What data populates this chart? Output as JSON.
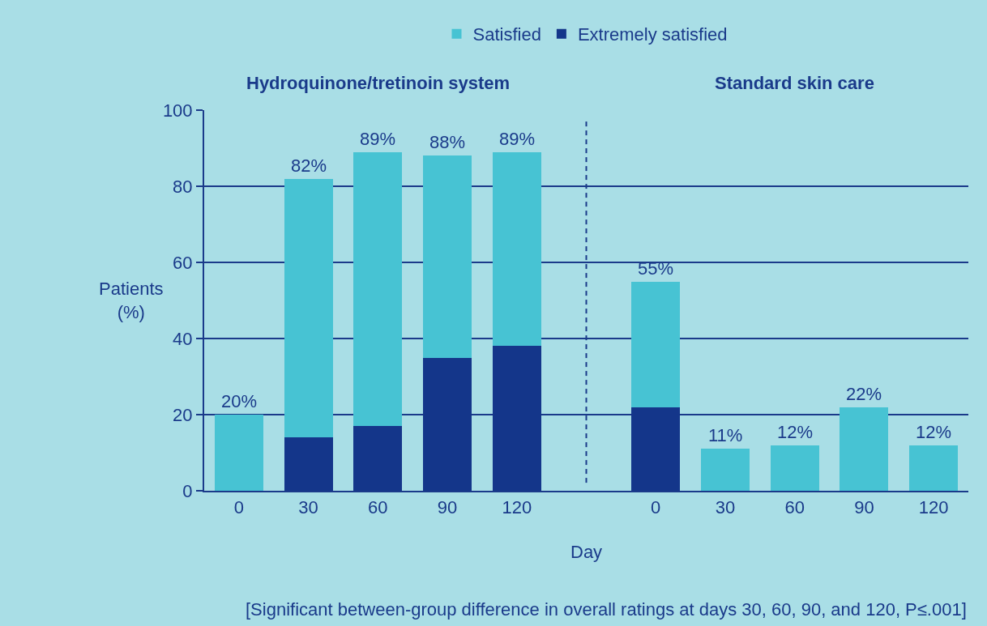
{
  "chart_data": {
    "type": "bar",
    "stacked": true,
    "categories": [
      "0",
      "30",
      "60",
      "90",
      "120",
      null,
      "0",
      "30",
      "60",
      "90",
      "120"
    ],
    "series": [
      {
        "name": "Extremely satisfied",
        "color": "#14368a",
        "values": [
          0,
          14,
          17,
          35,
          38,
          null,
          22,
          0,
          0,
          0,
          0
        ]
      },
      {
        "name": "Satisfied",
        "color": "#47c3d3",
        "values": [
          20,
          68,
          72,
          53,
          51,
          null,
          33,
          11,
          12,
          22,
          12
        ]
      }
    ],
    "totals": [
      "20%",
      "82%",
      "89%",
      "88%",
      "89%",
      null,
      "55%",
      "11%",
      "12%",
      "22%",
      "12%"
    ],
    "ylim": [
      0,
      100
    ],
    "yticks": [
      0,
      20,
      40,
      60,
      80,
      100
    ],
    "grid": "y",
    "legend": "top",
    "xlabel": "Day",
    "ylabel": "Patients\n(%)",
    "annotations": [
      "Hydroquinone/tretinoin system",
      "Standard skin care",
      "[Significant between-group difference in overall ratings at days 30, 60, 90, and 120, P≤.001]"
    ]
  }
}
